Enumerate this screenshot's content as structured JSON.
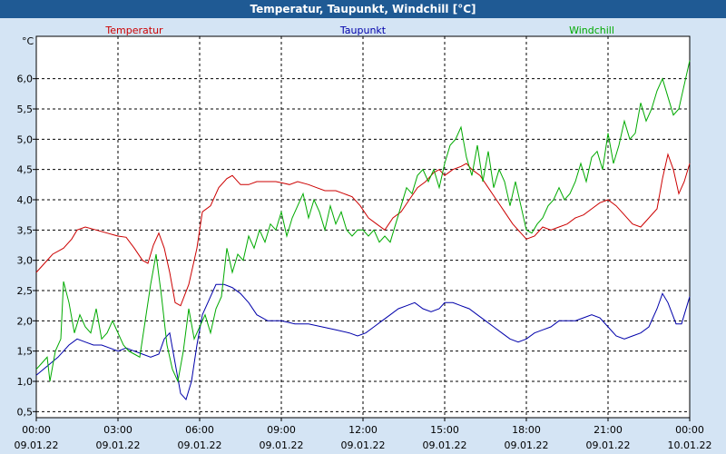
{
  "chart_data": {
    "type": "line",
    "title": "Temperatur, Taupunkt, Windchill [°C]",
    "ylabel": "°C",
    "xlabel": "",
    "ylim": [
      0.4,
      6.7
    ],
    "xlim": [
      0,
      24
    ],
    "grid": true,
    "legend": [
      {
        "name": "Temperatur",
        "color": "#cc0000"
      },
      {
        "name": "Taupunkt",
        "color": "#0000aa"
      },
      {
        "name": "Windchill",
        "color": "#00aa00"
      }
    ],
    "yticks": [
      0.5,
      1.0,
      1.5,
      2.0,
      2.5,
      3.0,
      3.5,
      4.0,
      4.5,
      5.0,
      5.5,
      6.0
    ],
    "ytick_labels": [
      "0,5",
      "1,0",
      "1,5",
      "2,0",
      "2,5",
      "3,0",
      "3,5",
      "4,0",
      "4,5",
      "5,0",
      "5,5",
      "6,0"
    ],
    "xticks": [
      {
        "hour": 0,
        "time": "00:00",
        "date": "09.01.22"
      },
      {
        "hour": 3,
        "time": "03:00",
        "date": "09.01.22"
      },
      {
        "hour": 6,
        "time": "06:00",
        "date": "09.01.22"
      },
      {
        "hour": 9,
        "time": "09:00",
        "date": "09.01.22"
      },
      {
        "hour": 12,
        "time": "12:00",
        "date": "09.01.22"
      },
      {
        "hour": 15,
        "time": "15:00",
        "date": "09.01.22"
      },
      {
        "hour": 18,
        "time": "18:00",
        "date": "09.01.22"
      },
      {
        "hour": 21,
        "time": "21:00",
        "date": "09.01.22"
      },
      {
        "hour": 24,
        "time": "00:00",
        "date": "10.01.22"
      }
    ],
    "series": [
      {
        "name": "Temperatur",
        "color": "#cc0000",
        "points": [
          [
            0,
            2.8
          ],
          [
            0.3,
            2.95
          ],
          [
            0.6,
            3.1
          ],
          [
            1.0,
            3.2
          ],
          [
            1.3,
            3.35
          ],
          [
            1.5,
            3.5
          ],
          [
            1.8,
            3.55
          ],
          [
            2.2,
            3.5
          ],
          [
            2.6,
            3.45
          ],
          [
            3.0,
            3.4
          ],
          [
            3.3,
            3.38
          ],
          [
            3.6,
            3.2
          ],
          [
            3.9,
            3.0
          ],
          [
            4.1,
            2.95
          ],
          [
            4.3,
            3.25
          ],
          [
            4.5,
            3.45
          ],
          [
            4.7,
            3.2
          ],
          [
            4.9,
            2.8
          ],
          [
            5.1,
            2.3
          ],
          [
            5.3,
            2.25
          ],
          [
            5.6,
            2.6
          ],
          [
            5.9,
            3.2
          ],
          [
            6.1,
            3.8
          ],
          [
            6.4,
            3.9
          ],
          [
            6.7,
            4.2
          ],
          [
            7.0,
            4.35
          ],
          [
            7.2,
            4.4
          ],
          [
            7.5,
            4.25
          ],
          [
            7.8,
            4.25
          ],
          [
            8.1,
            4.3
          ],
          [
            8.5,
            4.3
          ],
          [
            8.8,
            4.3
          ],
          [
            9.0,
            4.28
          ],
          [
            9.3,
            4.25
          ],
          [
            9.6,
            4.3
          ],
          [
            10.0,
            4.25
          ],
          [
            10.3,
            4.2
          ],
          [
            10.6,
            4.15
          ],
          [
            11.0,
            4.15
          ],
          [
            11.3,
            4.1
          ],
          [
            11.6,
            4.05
          ],
          [
            11.9,
            3.9
          ],
          [
            12.2,
            3.7
          ],
          [
            12.5,
            3.6
          ],
          [
            12.8,
            3.5
          ],
          [
            13.1,
            3.7
          ],
          [
            13.4,
            3.8
          ],
          [
            13.7,
            4.0
          ],
          [
            14.0,
            4.2
          ],
          [
            14.3,
            4.3
          ],
          [
            14.6,
            4.45
          ],
          [
            14.8,
            4.5
          ],
          [
            15.0,
            4.4
          ],
          [
            15.3,
            4.5
          ],
          [
            15.6,
            4.55
          ],
          [
            15.8,
            4.6
          ],
          [
            16.0,
            4.5
          ],
          [
            16.3,
            4.4
          ],
          [
            16.6,
            4.2
          ],
          [
            16.9,
            4.0
          ],
          [
            17.2,
            3.8
          ],
          [
            17.5,
            3.6
          ],
          [
            17.8,
            3.45
          ],
          [
            18.0,
            3.35
          ],
          [
            18.3,
            3.4
          ],
          [
            18.6,
            3.55
          ],
          [
            18.9,
            3.5
          ],
          [
            19.2,
            3.55
          ],
          [
            19.5,
            3.6
          ],
          [
            19.8,
            3.7
          ],
          [
            20.1,
            3.75
          ],
          [
            20.4,
            3.85
          ],
          [
            20.7,
            3.95
          ],
          [
            21.0,
            4.0
          ],
          [
            21.3,
            3.9
          ],
          [
            21.6,
            3.75
          ],
          [
            21.9,
            3.6
          ],
          [
            22.2,
            3.55
          ],
          [
            22.5,
            3.7
          ],
          [
            22.8,
            3.85
          ],
          [
            23.0,
            4.35
          ],
          [
            23.2,
            4.75
          ],
          [
            23.4,
            4.5
          ],
          [
            23.6,
            4.1
          ],
          [
            23.8,
            4.3
          ],
          [
            24.0,
            4.6
          ]
        ]
      },
      {
        "name": "Taupunkt",
        "color": "#0000aa",
        "points": [
          [
            0,
            1.1
          ],
          [
            0.4,
            1.25
          ],
          [
            0.8,
            1.4
          ],
          [
            1.2,
            1.6
          ],
          [
            1.5,
            1.7
          ],
          [
            1.8,
            1.65
          ],
          [
            2.1,
            1.6
          ],
          [
            2.4,
            1.6
          ],
          [
            2.7,
            1.55
          ],
          [
            3.0,
            1.5
          ],
          [
            3.3,
            1.55
          ],
          [
            3.6,
            1.5
          ],
          [
            3.9,
            1.45
          ],
          [
            4.2,
            1.4
          ],
          [
            4.5,
            1.45
          ],
          [
            4.7,
            1.7
          ],
          [
            4.9,
            1.8
          ],
          [
            5.1,
            1.3
          ],
          [
            5.3,
            0.8
          ],
          [
            5.5,
            0.7
          ],
          [
            5.7,
            1.0
          ],
          [
            5.9,
            1.6
          ],
          [
            6.1,
            2.1
          ],
          [
            6.3,
            2.3
          ],
          [
            6.6,
            2.6
          ],
          [
            6.9,
            2.6
          ],
          [
            7.2,
            2.55
          ],
          [
            7.5,
            2.45
          ],
          [
            7.8,
            2.3
          ],
          [
            8.1,
            2.1
          ],
          [
            8.5,
            2.0
          ],
          [
            9.0,
            2.0
          ],
          [
            9.5,
            1.95
          ],
          [
            10.0,
            1.95
          ],
          [
            10.5,
            1.9
          ],
          [
            11.0,
            1.85
          ],
          [
            11.5,
            1.8
          ],
          [
            11.8,
            1.75
          ],
          [
            12.1,
            1.8
          ],
          [
            12.4,
            1.9
          ],
          [
            12.7,
            2.0
          ],
          [
            13.0,
            2.1
          ],
          [
            13.3,
            2.2
          ],
          [
            13.6,
            2.25
          ],
          [
            13.9,
            2.3
          ],
          [
            14.2,
            2.2
          ],
          [
            14.5,
            2.15
          ],
          [
            14.8,
            2.2
          ],
          [
            15.0,
            2.3
          ],
          [
            15.3,
            2.3
          ],
          [
            15.6,
            2.25
          ],
          [
            15.9,
            2.2
          ],
          [
            16.2,
            2.1
          ],
          [
            16.5,
            2.0
          ],
          [
            16.8,
            1.9
          ],
          [
            17.1,
            1.8
          ],
          [
            17.4,
            1.7
          ],
          [
            17.7,
            1.65
          ],
          [
            18.0,
            1.7
          ],
          [
            18.3,
            1.8
          ],
          [
            18.6,
            1.85
          ],
          [
            18.9,
            1.9
          ],
          [
            19.2,
            2.0
          ],
          [
            19.5,
            2.0
          ],
          [
            19.8,
            2.0
          ],
          [
            20.1,
            2.05
          ],
          [
            20.4,
            2.1
          ],
          [
            20.7,
            2.05
          ],
          [
            21.0,
            1.9
          ],
          [
            21.3,
            1.75
          ],
          [
            21.6,
            1.7
          ],
          [
            21.9,
            1.75
          ],
          [
            22.2,
            1.8
          ],
          [
            22.5,
            1.9
          ],
          [
            22.8,
            2.2
          ],
          [
            23.0,
            2.45
          ],
          [
            23.2,
            2.3
          ],
          [
            23.5,
            1.95
          ],
          [
            23.7,
            1.95
          ],
          [
            24.0,
            2.4
          ]
        ]
      },
      {
        "name": "Windchill",
        "color": "#00aa00",
        "points": [
          [
            0,
            1.2
          ],
          [
            0.2,
            1.3
          ],
          [
            0.4,
            1.4
          ],
          [
            0.5,
            1.0
          ],
          [
            0.7,
            1.5
          ],
          [
            0.9,
            1.7
          ],
          [
            1.0,
            2.65
          ],
          [
            1.2,
            2.3
          ],
          [
            1.4,
            1.8
          ],
          [
            1.6,
            2.1
          ],
          [
            1.8,
            1.9
          ],
          [
            2.0,
            1.8
          ],
          [
            2.2,
            2.2
          ],
          [
            2.4,
            1.7
          ],
          [
            2.6,
            1.8
          ],
          [
            2.8,
            2.0
          ],
          [
            3.0,
            1.8
          ],
          [
            3.2,
            1.6
          ],
          [
            3.4,
            1.5
          ],
          [
            3.6,
            1.45
          ],
          [
            3.8,
            1.4
          ],
          [
            4.0,
            2.0
          ],
          [
            4.2,
            2.6
          ],
          [
            4.4,
            3.1
          ],
          [
            4.6,
            2.4
          ],
          [
            4.8,
            1.6
          ],
          [
            5.0,
            1.2
          ],
          [
            5.2,
            1.0
          ],
          [
            5.4,
            1.5
          ],
          [
            5.6,
            2.2
          ],
          [
            5.8,
            1.7
          ],
          [
            6.0,
            1.9
          ],
          [
            6.2,
            2.1
          ],
          [
            6.4,
            1.8
          ],
          [
            6.6,
            2.2
          ],
          [
            6.8,
            2.4
          ],
          [
            7.0,
            3.2
          ],
          [
            7.2,
            2.8
          ],
          [
            7.4,
            3.1
          ],
          [
            7.6,
            3.0
          ],
          [
            7.8,
            3.4
          ],
          [
            8.0,
            3.2
          ],
          [
            8.2,
            3.5
          ],
          [
            8.4,
            3.3
          ],
          [
            8.6,
            3.6
          ],
          [
            8.8,
            3.5
          ],
          [
            9.0,
            3.8
          ],
          [
            9.2,
            3.4
          ],
          [
            9.4,
            3.7
          ],
          [
            9.6,
            3.9
          ],
          [
            9.8,
            4.1
          ],
          [
            10.0,
            3.7
          ],
          [
            10.2,
            4.0
          ],
          [
            10.4,
            3.8
          ],
          [
            10.6,
            3.5
          ],
          [
            10.8,
            3.9
          ],
          [
            11.0,
            3.6
          ],
          [
            11.2,
            3.8
          ],
          [
            11.4,
            3.5
          ],
          [
            11.6,
            3.4
          ],
          [
            11.8,
            3.5
          ],
          [
            12.0,
            3.5
          ],
          [
            12.2,
            3.4
          ],
          [
            12.4,
            3.5
          ],
          [
            12.6,
            3.3
          ],
          [
            12.8,
            3.4
          ],
          [
            13.0,
            3.3
          ],
          [
            13.2,
            3.6
          ],
          [
            13.4,
            3.9
          ],
          [
            13.6,
            4.2
          ],
          [
            13.8,
            4.1
          ],
          [
            14.0,
            4.4
          ],
          [
            14.2,
            4.5
          ],
          [
            14.4,
            4.3
          ],
          [
            14.6,
            4.5
          ],
          [
            14.8,
            4.2
          ],
          [
            15.0,
            4.6
          ],
          [
            15.2,
            4.9
          ],
          [
            15.4,
            5.0
          ],
          [
            15.6,
            5.2
          ],
          [
            15.8,
            4.7
          ],
          [
            16.0,
            4.4
          ],
          [
            16.2,
            4.9
          ],
          [
            16.4,
            4.3
          ],
          [
            16.6,
            4.8
          ],
          [
            16.8,
            4.2
          ],
          [
            17.0,
            4.5
          ],
          [
            17.2,
            4.3
          ],
          [
            17.4,
            3.9
          ],
          [
            17.6,
            4.3
          ],
          [
            17.8,
            3.9
          ],
          [
            18.0,
            3.5
          ],
          [
            18.2,
            3.45
          ],
          [
            18.4,
            3.6
          ],
          [
            18.6,
            3.7
          ],
          [
            18.8,
            3.9
          ],
          [
            19.0,
            4.0
          ],
          [
            19.2,
            4.2
          ],
          [
            19.4,
            4.0
          ],
          [
            19.6,
            4.1
          ],
          [
            19.8,
            4.3
          ],
          [
            20.0,
            4.6
          ],
          [
            20.2,
            4.3
          ],
          [
            20.4,
            4.7
          ],
          [
            20.6,
            4.8
          ],
          [
            20.8,
            4.5
          ],
          [
            21.0,
            5.1
          ],
          [
            21.2,
            4.6
          ],
          [
            21.4,
            4.9
          ],
          [
            21.6,
            5.3
          ],
          [
            21.8,
            5.0
          ],
          [
            22.0,
            5.1
          ],
          [
            22.2,
            5.6
          ],
          [
            22.4,
            5.3
          ],
          [
            22.6,
            5.5
          ],
          [
            22.8,
            5.8
          ],
          [
            23.0,
            6.0
          ],
          [
            23.2,
            5.7
          ],
          [
            23.4,
            5.4
          ],
          [
            23.6,
            5.5
          ],
          [
            23.8,
            5.9
          ],
          [
            24.0,
            6.3
          ]
        ]
      }
    ]
  }
}
